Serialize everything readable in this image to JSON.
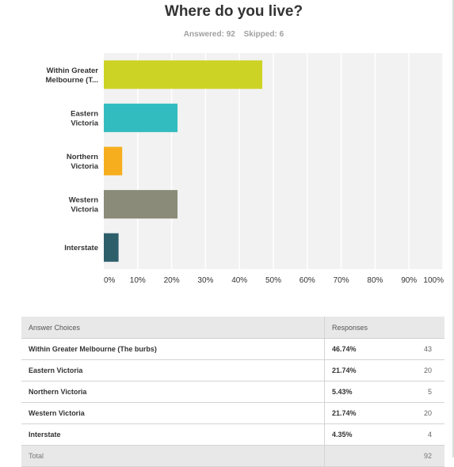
{
  "title": "Where do you live?",
  "answered": "Answered: 92",
  "skipped": "Skipped: 6",
  "chart_data": {
    "type": "bar",
    "orientation": "horizontal",
    "categories": [
      [
        "Within Greater",
        "Melbourne (T..."
      ],
      [
        "Eastern",
        "Victoria"
      ],
      [
        "Northern",
        "Victoria"
      ],
      [
        "Western",
        "Victoria"
      ],
      [
        "Interstate"
      ]
    ],
    "values": [
      46.74,
      21.74,
      5.43,
      21.74,
      4.35
    ],
    "colors": [
      "#cdd325",
      "#33bcbf",
      "#f7ae1e",
      "#8b8b7a",
      "#2d5f6b"
    ],
    "xlim": [
      0,
      100
    ],
    "xticks": [
      "0%",
      "10%",
      "20%",
      "30%",
      "40%",
      "50%",
      "60%",
      "70%",
      "80%",
      "90%",
      "100%"
    ],
    "grid": true
  },
  "table": {
    "headers": [
      "Answer Choices",
      "Responses"
    ],
    "rows": [
      {
        "choice": "Within Greater Melbourne (The burbs)",
        "pct": "46.74%",
        "count": "43"
      },
      {
        "choice": "Eastern Victoria",
        "pct": "21.74%",
        "count": "20"
      },
      {
        "choice": "Northern Victoria",
        "pct": "5.43%",
        "count": "5"
      },
      {
        "choice": "Western Victoria",
        "pct": "21.74%",
        "count": "20"
      },
      {
        "choice": "Interstate",
        "pct": "4.35%",
        "count": "4"
      }
    ],
    "total_label": "Total",
    "total_value": "92"
  }
}
